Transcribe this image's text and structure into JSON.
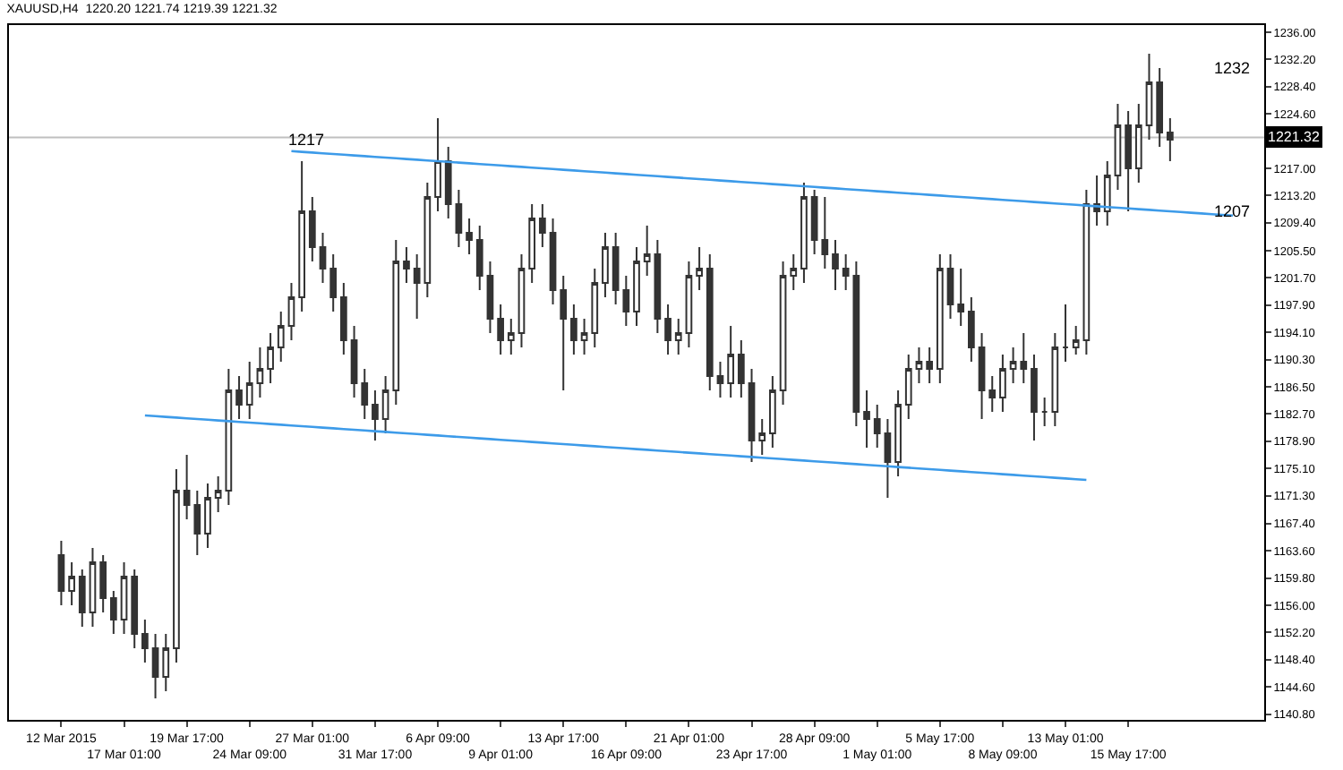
{
  "chart_data": {
    "type": "candlestick",
    "title": "XAUUSD,H4  1220.20 1221.74 1219.39 1221.32",
    "color": "#333333",
    "categories": [
      "12 Mar 2015",
      null,
      null,
      null,
      null,
      null,
      "17 Mar 01:00",
      null,
      null,
      null,
      null,
      null,
      "19 Mar 17:00",
      null,
      null,
      null,
      null,
      null,
      "24 Mar 09:00",
      null,
      null,
      null,
      null,
      null,
      "27 Mar 01:00",
      null,
      null,
      null,
      null,
      null,
      "31 Mar 17:00",
      null,
      null,
      null,
      null,
      null,
      "6 Apr 09:00",
      null,
      null,
      null,
      null,
      null,
      "9 Apr 01:00",
      null,
      null,
      null,
      null,
      null,
      "13 Apr 17:00",
      null,
      null,
      null,
      null,
      null,
      "16 Apr 09:00",
      null,
      null,
      null,
      null,
      null,
      "21 Apr 01:00",
      null,
      null,
      null,
      null,
      null,
      "23 Apr 17:00",
      null,
      null,
      null,
      null,
      null,
      "28 Apr 09:00",
      null,
      null,
      null,
      null,
      null,
      "1 May 01:00",
      null,
      null,
      null,
      null,
      null,
      "5 May 17:00",
      null,
      null,
      null,
      null,
      null,
      "8 May 09:00",
      null,
      null,
      null,
      null,
      null,
      "13 May 01:00",
      null,
      null,
      null,
      null,
      null,
      "15 May 17:00",
      null,
      null,
      null,
      null,
      null,
      null,
      null,
      null,
      null,
      null
    ],
    "ohlc": [
      [
        1163,
        1165,
        1156,
        1158
      ],
      [
        1158,
        1162,
        1156,
        1160
      ],
      [
        1160,
        1161,
        1153,
        1155
      ],
      [
        1155,
        1164,
        1153,
        1162
      ],
      [
        1162,
        1163,
        1155,
        1157
      ],
      [
        1157,
        1158,
        1152,
        1154
      ],
      [
        1154,
        1162,
        1152,
        1160
      ],
      [
        1160,
        1161,
        1150,
        1152
      ],
      [
        1152,
        1154,
        1148,
        1150
      ],
      [
        1150,
        1152,
        1143,
        1146
      ],
      [
        1146,
        1152,
        1144,
        1150
      ],
      [
        1150,
        1175,
        1148,
        1172
      ],
      [
        1172,
        1177,
        1168,
        1170
      ],
      [
        1170,
        1172,
        1163,
        1166
      ],
      [
        1166,
        1173,
        1164,
        1171
      ],
      [
        1171,
        1174,
        1169,
        1172
      ],
      [
        1172,
        1189,
        1170,
        1186
      ],
      [
        1186,
        1188,
        1182,
        1184
      ],
      [
        1184,
        1190,
        1182,
        1187
      ],
      [
        1187,
        1192,
        1185,
        1189
      ],
      [
        1189,
        1194,
        1187,
        1192
      ],
      [
        1192,
        1197,
        1190,
        1195
      ],
      [
        1195,
        1201,
        1193,
        1199
      ],
      [
        1199,
        1218,
        1197,
        1211
      ],
      [
        1211,
        1213,
        1204,
        1206
      ],
      [
        1206,
        1208,
        1201,
        1203
      ],
      [
        1203,
        1205,
        1197,
        1199
      ],
      [
        1199,
        1201,
        1191,
        1193
      ],
      [
        1193,
        1195,
        1185,
        1187
      ],
      [
        1187,
        1189,
        1182,
        1184
      ],
      [
        1184,
        1186,
        1179,
        1182
      ],
      [
        1182,
        1188,
        1180,
        1186
      ],
      [
        1186,
        1207,
        1184,
        1204
      ],
      [
        1204,
        1206,
        1201,
        1203
      ],
      [
        1203,
        1205,
        1196,
        1201
      ],
      [
        1201,
        1215,
        1199,
        1213
      ],
      [
        1213,
        1224,
        1211,
        1218
      ],
      [
        1218,
        1220,
        1210,
        1212
      ],
      [
        1212,
        1214,
        1206,
        1208
      ],
      [
        1208,
        1210,
        1205,
        1207
      ],
      [
        1207,
        1209,
        1200,
        1202
      ],
      [
        1202,
        1204,
        1194,
        1196
      ],
      [
        1196,
        1198,
        1191,
        1193
      ],
      [
        1193,
        1196,
        1191,
        1194
      ],
      [
        1194,
        1205,
        1192,
        1203
      ],
      [
        1203,
        1212,
        1201,
        1210
      ],
      [
        1210,
        1212,
        1206,
        1208
      ],
      [
        1208,
        1210,
        1198,
        1200
      ],
      [
        1200,
        1202,
        1186,
        1196
      ],
      [
        1196,
        1198,
        1191,
        1193
      ],
      [
        1193,
        1196,
        1191,
        1194
      ],
      [
        1194,
        1203,
        1192,
        1201
      ],
      [
        1201,
        1208,
        1199,
        1206
      ],
      [
        1206,
        1208,
        1198,
        1200
      ],
      [
        1200,
        1202,
        1195,
        1197
      ],
      [
        1197,
        1206,
        1195,
        1204
      ],
      [
        1204,
        1209,
        1202,
        1205
      ],
      [
        1205,
        1207,
        1194,
        1196
      ],
      [
        1196,
        1198,
        1191,
        1193
      ],
      [
        1193,
        1196,
        1191,
        1194
      ],
      [
        1194,
        1204,
        1192,
        1202
      ],
      [
        1202,
        1206,
        1200,
        1203
      ],
      [
        1203,
        1205,
        1186,
        1188
      ],
      [
        1188,
        1190,
        1185,
        1187
      ],
      [
        1187,
        1195,
        1185,
        1191
      ],
      [
        1191,
        1193,
        1185,
        1187
      ],
      [
        1187,
        1189,
        1176,
        1179
      ],
      [
        1179,
        1182,
        1177,
        1180
      ],
      [
        1180,
        1188,
        1178,
        1186
      ],
      [
        1186,
        1204,
        1184,
        1202
      ],
      [
        1202,
        1205,
        1200,
        1203
      ],
      [
        1203,
        1215,
        1201,
        1213
      ],
      [
        1213,
        1214,
        1205,
        1207
      ],
      [
        1207,
        1213,
        1203,
        1205
      ],
      [
        1205,
        1207,
        1200,
        1203
      ],
      [
        1203,
        1205,
        1200,
        1202
      ],
      [
        1202,
        1204,
        1181,
        1183
      ],
      [
        1183,
        1186,
        1178,
        1182
      ],
      [
        1182,
        1184,
        1178,
        1180
      ],
      [
        1180,
        1182,
        1171,
        1176
      ],
      [
        1176,
        1186,
        1174,
        1184
      ],
      [
        1184,
        1191,
        1182,
        1189
      ],
      [
        1189,
        1192,
        1187,
        1190
      ],
      [
        1190,
        1192,
        1187,
        1189
      ],
      [
        1189,
        1205,
        1187,
        1203
      ],
      [
        1203,
        1205,
        1196,
        1198
      ],
      [
        1198,
        1203,
        1195,
        1197
      ],
      [
        1197,
        1199,
        1190,
        1192
      ],
      [
        1192,
        1194,
        1182,
        1186
      ],
      [
        1186,
        1188,
        1183,
        1185
      ],
      [
        1185,
        1191,
        1183,
        1189
      ],
      [
        1189,
        1192,
        1187,
        1190
      ],
      [
        1190,
        1194,
        1187,
        1189
      ],
      [
        1189,
        1191,
        1179,
        1183
      ],
      [
        1183,
        1185,
        1181,
        1183
      ],
      [
        1183,
        1194,
        1181,
        1192
      ],
      [
        1192,
        1198,
        1190,
        1192
      ],
      [
        1192,
        1195,
        1191,
        1193
      ],
      [
        1193,
        1214,
        1191,
        1212
      ],
      [
        1212,
        1216,
        1209,
        1211
      ],
      [
        1211,
        1218,
        1209,
        1216
      ],
      [
        1216,
        1226,
        1214,
        1223
      ],
      [
        1223,
        1225,
        1211,
        1217
      ],
      [
        1217,
        1226,
        1215,
        1223
      ],
      [
        1223,
        1233,
        1221,
        1229
      ],
      [
        1229,
        1231,
        1220,
        1222
      ],
      [
        1222,
        1224,
        1218,
        1221
      ],
      null,
      null,
      null,
      null,
      null,
      null
    ],
    "series": [
      {
        "type": "line",
        "color": "#3d9be9",
        "values": [
          null,
          null,
          null,
          null,
          null,
          null,
          null,
          null,
          null,
          null,
          null,
          null,
          null,
          null,
          null,
          null,
          null,
          null,
          null,
          null,
          null,
          null,
          1219.4,
          1219.3,
          1219.2,
          1219.1,
          1219.0,
          1218.9,
          1218.8,
          1218.7,
          1218.6,
          1218.5,
          1218.4,
          1218.3,
          1218.2,
          1218.1,
          1218.0,
          1217.9,
          1217.8,
          1217.7,
          1217.6,
          1217.5,
          1217.4,
          1217.3,
          1217.2,
          1217.1,
          1217.0,
          1216.9,
          1216.8,
          1216.7,
          1216.6,
          1216.5,
          1216.4,
          1216.3,
          1216.2,
          1216.1,
          1216.0,
          1215.9,
          1215.8,
          1215.7,
          1215.6,
          1215.5,
          1215.4,
          1215.3,
          1215.2,
          1215.1,
          1215.0,
          1214.9,
          1214.8,
          1214.7,
          1214.6,
          1214.5,
          1214.4,
          1214.3,
          1214.2,
          1214.1,
          1214.0,
          1213.9,
          1213.8,
          1213.7,
          1213.6,
          1213.5,
          1213.4,
          1213.3,
          1213.2,
          1213.1,
          1213.0,
          1212.9,
          1212.8,
          1212.7,
          1212.6,
          1212.5,
          1212.4,
          1212.3,
          1212.2,
          1212.1,
          1212.0,
          1211.9,
          1211.8,
          1211.7,
          1211.6,
          1211.5,
          1211.4,
          1211.3,
          1211.2,
          1211.1,
          1211.0,
          1210.9,
          1210.8,
          1210.7,
          1210.6,
          1210.5,
          1210.4
        ]
      },
      {
        "type": "line",
        "color": "#3d9be9",
        "values": [
          null,
          null,
          null,
          null,
          null,
          null,
          null,
          null,
          1182.5,
          1182.4,
          1182.3,
          1182.2,
          1182.1,
          1182.0,
          1181.9,
          1181.8,
          1181.7,
          1181.6,
          1181.5,
          1181.4,
          1181.3,
          1181.2,
          1181.1,
          1181.0,
          1180.9,
          1180.8,
          1180.7,
          1180.6,
          1180.5,
          1180.4,
          1180.3,
          1180.2,
          1180.1,
          1180.0,
          1179.9,
          1179.8,
          1179.7,
          1179.6,
          1179.5,
          1179.4,
          1179.3,
          1179.2,
          1179.1,
          1179.0,
          1178.9,
          1178.8,
          1178.7,
          1178.6,
          1178.5,
          1178.4,
          1178.3,
          1178.2,
          1178.1,
          1178.0,
          1177.9,
          1177.8,
          1177.7,
          1177.6,
          1177.5,
          1177.4,
          1177.3,
          1177.2,
          1177.1,
          1177.0,
          1176.9,
          1176.8,
          1176.7,
          1176.6,
          1176.5,
          1176.4,
          1176.3,
          1176.2,
          1176.1,
          1176.0,
          1175.9,
          1175.8,
          1175.7,
          1175.6,
          1175.5,
          1175.4,
          1175.3,
          1175.2,
          1175.1,
          1175.0,
          1174.9,
          1174.8,
          1174.7,
          1174.6,
          1174.5,
          1174.4,
          1174.3,
          1174.2,
          1174.1,
          1174.0,
          1173.9,
          1173.8,
          1173.7,
          1173.6,
          1173.5,
          null,
          null,
          null,
          null,
          null,
          null,
          null,
          null,
          null,
          null,
          null,
          null,
          null,
          null
        ]
      }
    ],
    "ylim": [
      1140.0,
      1237.0
    ],
    "yticks": [
      {
        "value": 1236,
        "label": "1236.00"
      },
      {
        "value": 1232.2,
        "label": "1232.20"
      },
      {
        "value": 1228.4,
        "label": "1228.40"
      },
      {
        "value": 1224.6,
        "label": "1224.60"
      },
      {
        "value": 1217,
        "label": "1217.00"
      },
      {
        "value": 1213.2,
        "label": "1213.20"
      },
      {
        "value": 1209.4,
        "label": "1209.40"
      },
      {
        "value": 1205.5,
        "label": "1205.50"
      },
      {
        "value": 1201.7,
        "label": "1201.70"
      },
      {
        "value": 1197.9,
        "label": "1197.90"
      },
      {
        "value": 1194.1,
        "label": "1194.10"
      },
      {
        "value": 1190.3,
        "label": "1190.30"
      },
      {
        "value": 1186.5,
        "label": "1186.50"
      },
      {
        "value": 1182.7,
        "label": "1182.70"
      },
      {
        "value": 1178.9,
        "label": "1178.90"
      },
      {
        "value": 1175.1,
        "label": "1175.10"
      },
      {
        "value": 1171.3,
        "label": "1171.30"
      },
      {
        "value": 1167.4,
        "label": "1167.40"
      },
      {
        "value": 1163.6,
        "label": "1163.60"
      },
      {
        "value": 1159.8,
        "label": "1159.80"
      },
      {
        "value": 1156,
        "label": "1156.00"
      },
      {
        "value": 1152.2,
        "label": "1152.20"
      },
      {
        "value": 1148.4,
        "label": "1148.40"
      },
      {
        "value": 1144.6,
        "label": "1144.60"
      },
      {
        "value": 1140.8,
        "label": "1140.80"
      }
    ],
    "ref_lines": [
      {
        "axis": "y",
        "value": 1221.32,
        "label": "1221.32",
        "color": "#c0c0c0"
      }
    ],
    "annotations": [
      "1217",
      "1232",
      "1207"
    ],
    "grid": false
  }
}
